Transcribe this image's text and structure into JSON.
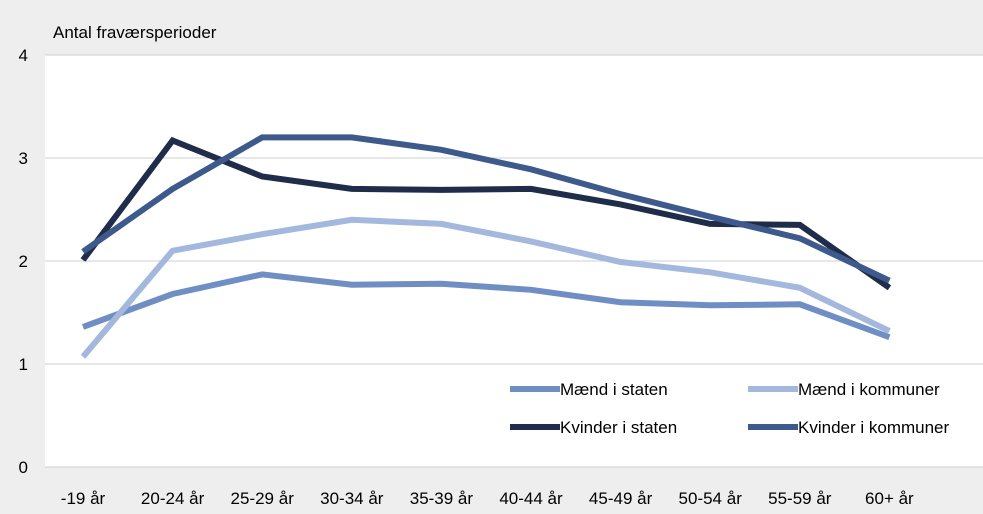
{
  "chart_data": {
    "type": "line",
    "ylabel": "Antal fraværsperioder",
    "xlabel": "",
    "ylim": [
      0,
      4
    ],
    "yticks": [
      "0",
      "1",
      "2",
      "3",
      "4"
    ],
    "categories": [
      "-19 år",
      "20-24 år",
      "25-29 år",
      "30-34 år",
      "35-39 år",
      "40-44 år",
      "45-49 år",
      "50-54 år",
      "55-59 år",
      "60+ år"
    ],
    "grid": true,
    "legend_position": "bottom-right",
    "series": [
      {
        "name": "Mænd i staten",
        "color": "#6f8fc4",
        "values": [
          1.36,
          1.68,
          1.87,
          1.77,
          1.78,
          1.72,
          1.6,
          1.57,
          1.58,
          1.26
        ]
      },
      {
        "name": "Mænd i kommuner",
        "color": "#a3b8dc",
        "values": [
          1.07,
          2.1,
          2.26,
          2.4,
          2.36,
          2.19,
          1.99,
          1.89,
          1.74,
          1.32
        ]
      },
      {
        "name": "Kvinder i staten",
        "color": "#1f2d4a",
        "values": [
          2.01,
          3.17,
          2.82,
          2.7,
          2.69,
          2.7,
          2.55,
          2.36,
          2.35,
          1.74
        ]
      },
      {
        "name": "Kvinder i kommuner",
        "color": "#3e5a8c",
        "values": [
          2.09,
          2.7,
          3.2,
          3.2,
          3.08,
          2.89,
          2.65,
          2.43,
          2.22,
          1.81
        ]
      }
    ]
  }
}
